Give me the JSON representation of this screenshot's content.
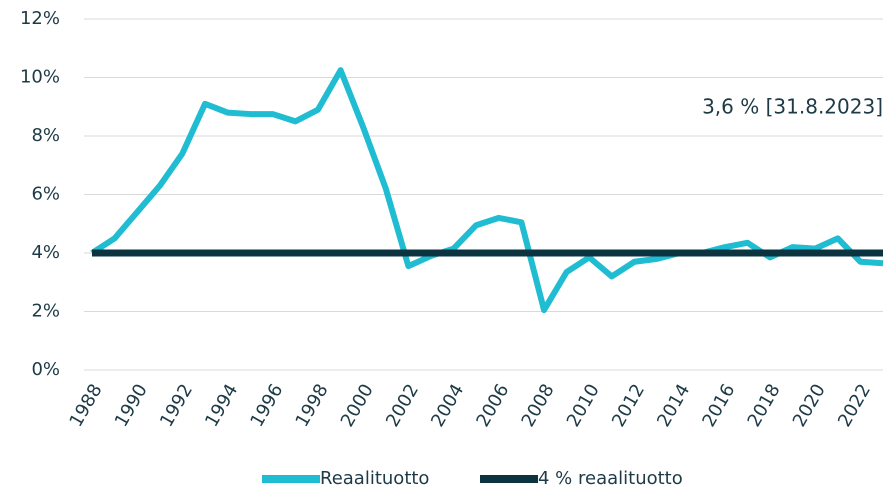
{
  "chart_data": {
    "type": "line",
    "x": [
      1988,
      1989,
      1990,
      1991,
      1992,
      1993,
      1994,
      1995,
      1996,
      1997,
      1998,
      1999,
      2000,
      2001,
      2002,
      2003,
      2004,
      2005,
      2006,
      2007,
      2008,
      2009,
      2010,
      2011,
      2012,
      2013,
      2014,
      2015,
      2016,
      2017,
      2018,
      2019,
      2020,
      2021,
      2022,
      2023
    ],
    "series": [
      {
        "name": "Reaalituotto",
        "color": "#1fbcd2",
        "values": [
          4.0,
          4.5,
          5.4,
          6.3,
          7.4,
          9.1,
          8.8,
          8.75,
          8.75,
          8.5,
          8.9,
          10.25,
          8.3,
          6.2,
          3.55,
          3.9,
          4.15,
          4.95,
          5.2,
          5.05,
          2.05,
          3.35,
          3.85,
          3.2,
          3.7,
          3.8,
          4.0,
          4.0,
          4.2,
          4.35,
          3.85,
          4.2,
          4.15,
          4.5,
          3.7,
          3.65
        ]
      },
      {
        "name": "4 % reaalituotto",
        "color": "#0b3440",
        "values": [
          4,
          4,
          4,
          4,
          4,
          4,
          4,
          4,
          4,
          4,
          4,
          4,
          4,
          4,
          4,
          4,
          4,
          4,
          4,
          4,
          4,
          4,
          4,
          4,
          4,
          4,
          4,
          4,
          4,
          4,
          4,
          4,
          4,
          4,
          4,
          4
        ]
      }
    ],
    "annotation": "3,6 % [31.8.2023]",
    "xlim": [
      1988,
      2023
    ],
    "xticks": [
      1988,
      1990,
      1992,
      1994,
      1996,
      1998,
      2000,
      2002,
      2004,
      2006,
      2008,
      2010,
      2012,
      2014,
      2016,
      2018,
      2020,
      2022
    ],
    "ylim": [
      0,
      12
    ],
    "yticks": [
      {
        "value": 0,
        "label": "0%"
      },
      {
        "value": 2,
        "label": "2%"
      },
      {
        "value": 4,
        "label": "4%"
      },
      {
        "value": 6,
        "label": "6%"
      },
      {
        "value": 8,
        "label": "8%"
      },
      {
        "value": 10,
        "label": "10%"
      },
      {
        "value": 12,
        "label": "12%"
      }
    ],
    "grid": true,
    "legend": "bottom"
  }
}
